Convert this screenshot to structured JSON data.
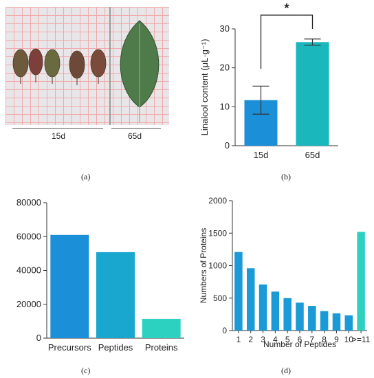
{
  "panel_a": {
    "caption": "(a)",
    "label_left": "15d",
    "label_right": "65d"
  },
  "captions": {
    "b": "(b)",
    "c": "(c)",
    "d": "(d)"
  },
  "significance_mark": "*",
  "colors": {
    "blue": "#1b8fd8",
    "teal": "#1ab7bd",
    "mint": "#2dd1bf",
    "leaf": "#4f7a49"
  },
  "chart_data": [
    {
      "id": "b",
      "type": "bar",
      "categories": [
        "15d",
        "65d"
      ],
      "values": [
        11.7,
        26.6
      ],
      "errors": [
        3.6,
        0.8
      ],
      "ylabel": "Linalool content (μL·g⁻¹)",
      "ylim": [
        0,
        30
      ],
      "yticks": [
        0,
        10,
        20,
        30
      ],
      "colors": [
        "#1b8fd8",
        "#1ab7bd"
      ],
      "annotation": "*"
    },
    {
      "id": "c",
      "type": "bar",
      "categories": [
        "Precursors",
        "Peptides",
        "Proteins"
      ],
      "values": [
        61000,
        50800,
        11400
      ],
      "ylim": [
        0,
        80000
      ],
      "yticks": [
        0,
        20000,
        40000,
        60000,
        80000
      ],
      "colors": [
        "#1b8fd8",
        "#19a7cf",
        "#2dd1bf"
      ]
    },
    {
      "id": "d",
      "type": "bar",
      "categories": [
        "1",
        "2",
        "3",
        "4",
        "5",
        "6",
        "7",
        "8",
        "9",
        "10",
        ">=11"
      ],
      "values": [
        1210,
        960,
        710,
        600,
        500,
        430,
        380,
        300,
        265,
        235,
        1520
      ],
      "xlabel": "Number of Peptides",
      "ylabel": "Numbers of Proteins",
      "ylim": [
        0,
        2000
      ],
      "yticks": [
        0,
        500,
        1000,
        1500,
        2000
      ],
      "colors": [
        "#1a9ad6",
        "#1a9ad6",
        "#1a9ad6",
        "#1a9ad6",
        "#1a9ad6",
        "#1a9ad6",
        "#1a9ad6",
        "#1a9ad6",
        "#1a9ad6",
        "#1a9ad6",
        "#2dd1bf"
      ]
    }
  ]
}
